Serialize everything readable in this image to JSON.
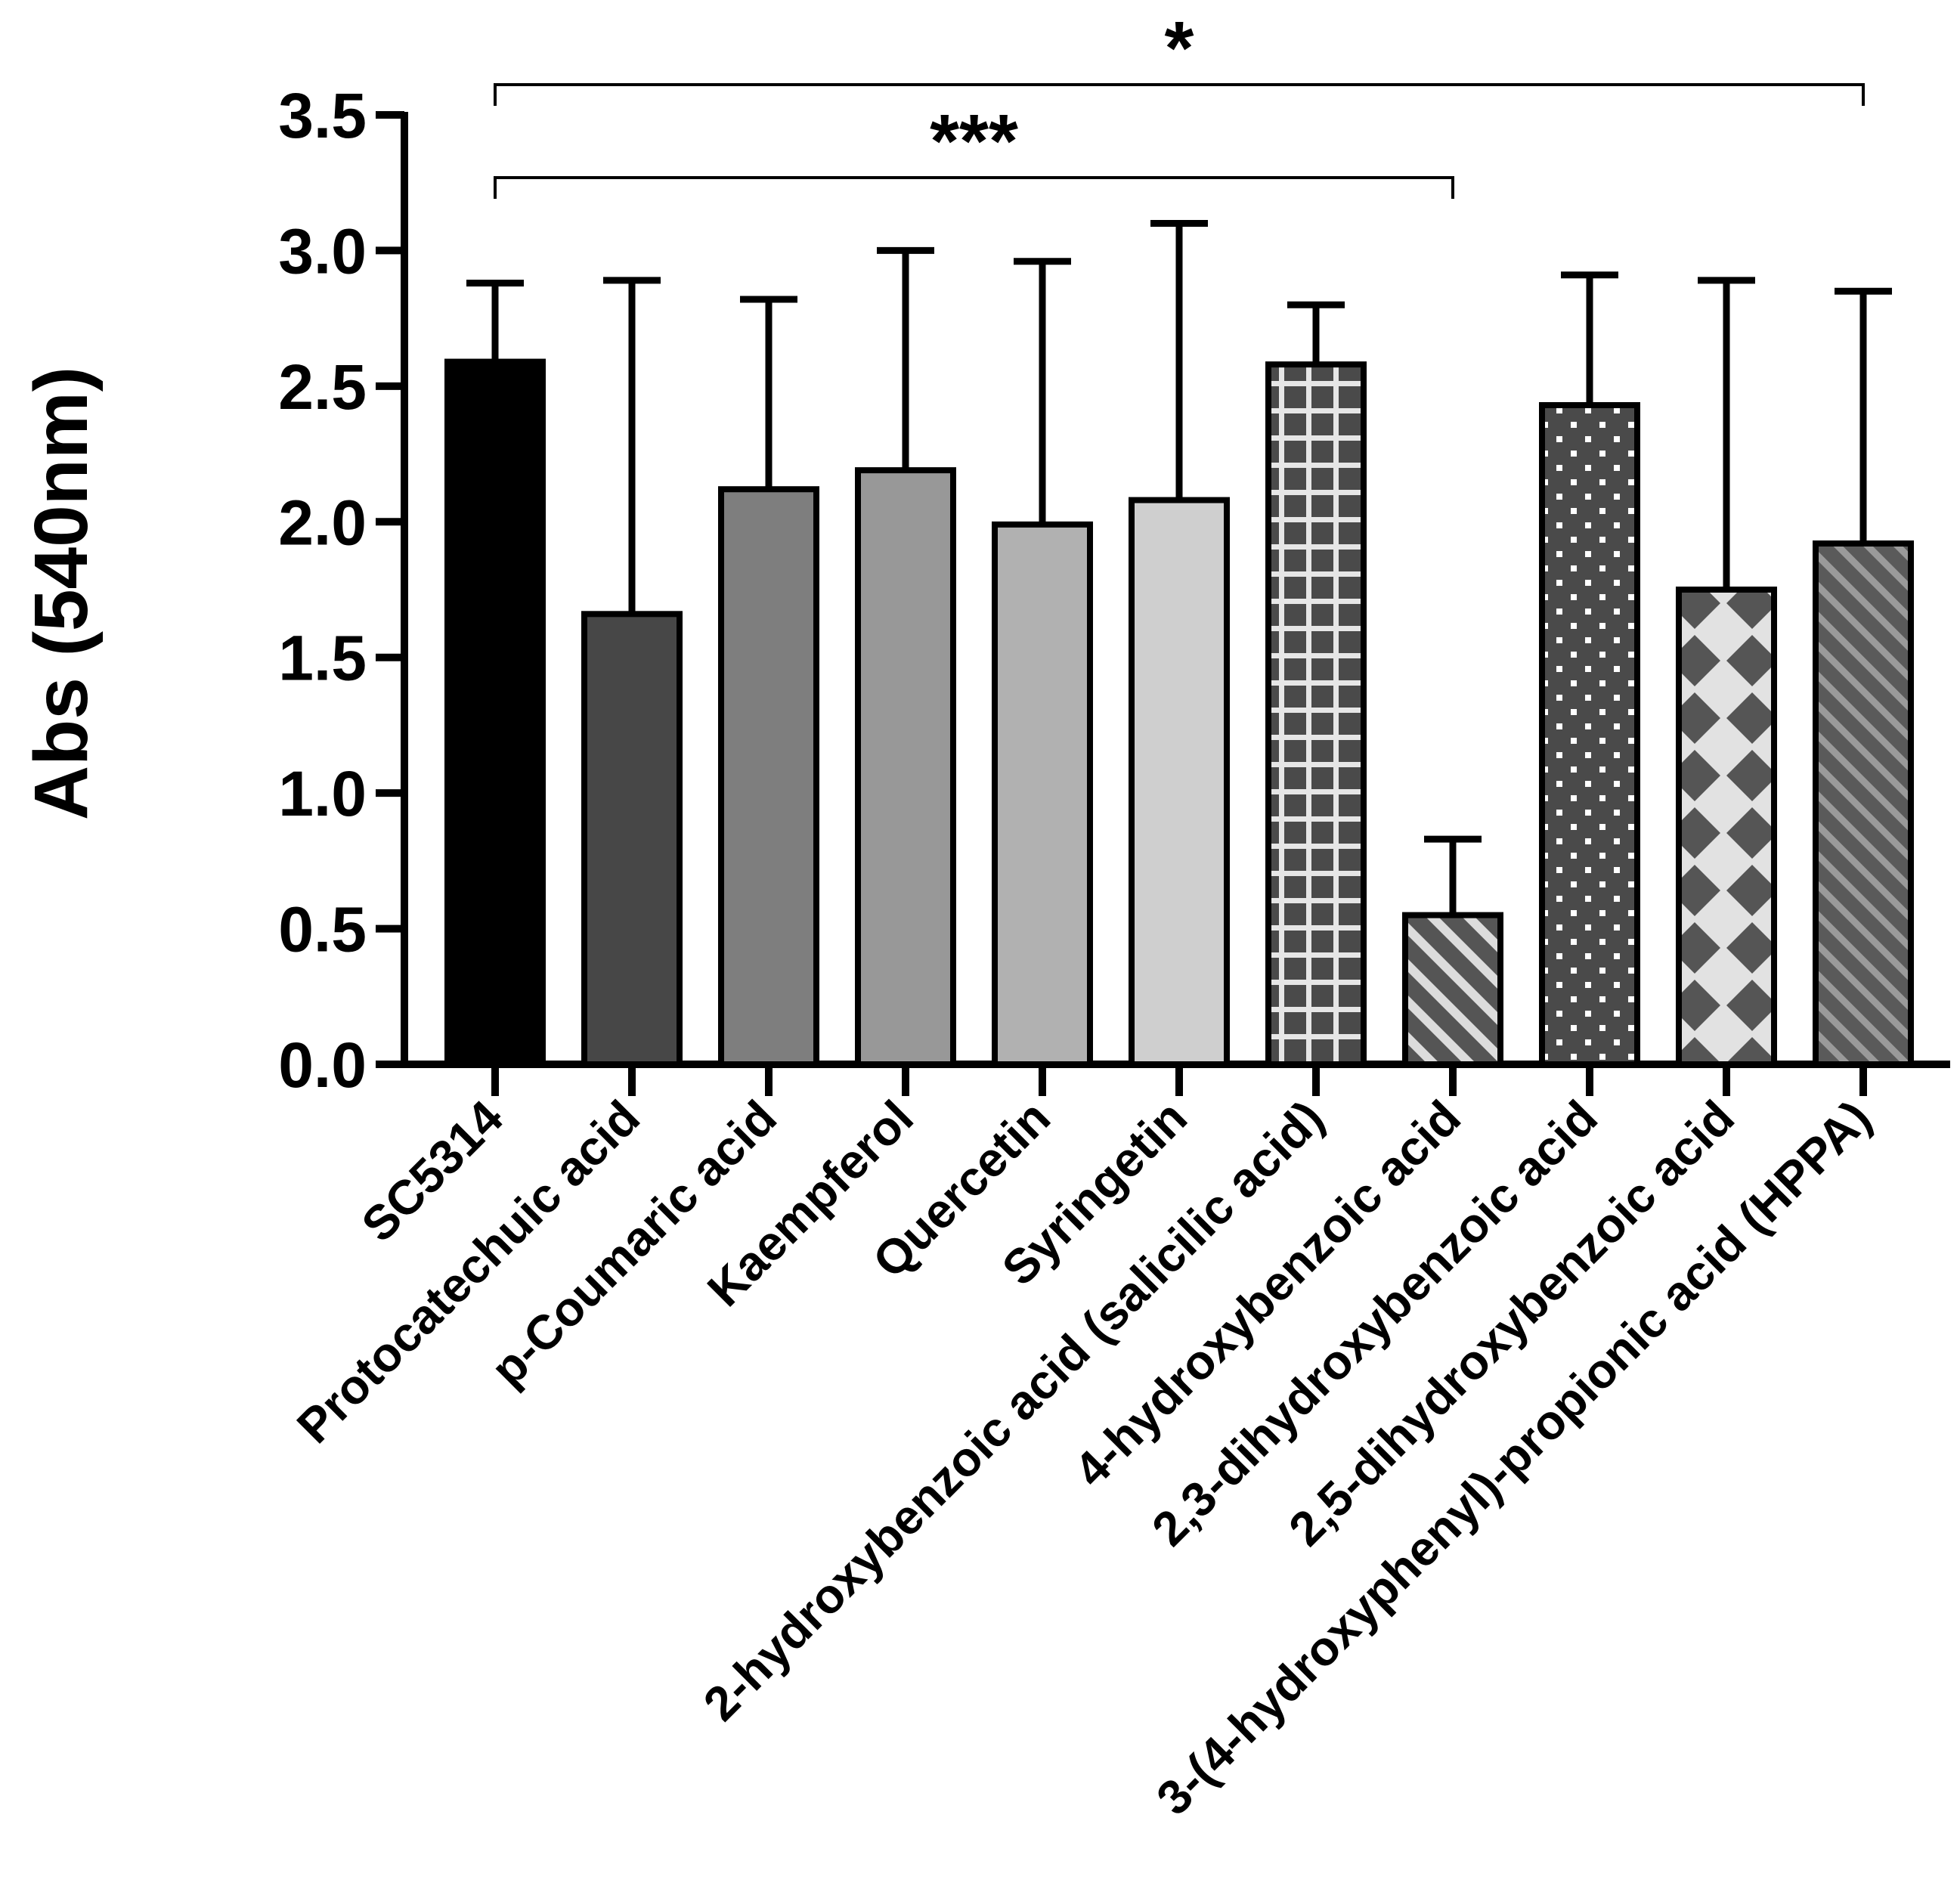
{
  "chart_data": {
    "type": "bar",
    "title": "",
    "xlabel": "",
    "ylabel": "Abs (540nm)",
    "ylim": [
      0,
      3.5
    ],
    "yticks": [
      "0.0",
      "0.5",
      "1.0",
      "1.5",
      "2.0",
      "2.5",
      "3.0",
      "3.5"
    ],
    "grid": false,
    "legend": "none",
    "categories": [
      "SC5314",
      "Protocatechuic acid",
      "p-Coumaric acid",
      "Kaempferol",
      "Quercetin",
      "Syringetin",
      "2-hydroxybenzoic acid (salicilic acid)",
      "4-hydroxybenzoic acid",
      "2,3-dihydroxybenzoic acid",
      "2,5-dihydroxybenzoic acid",
      "3-(4-hydroxyphenyl)-propionic acid (HPPA)"
    ],
    "values": [
      2.59,
      1.66,
      2.12,
      2.19,
      1.99,
      2.08,
      2.58,
      0.55,
      2.43,
      1.75,
      1.92
    ],
    "error_upper": [
      2.88,
      2.89,
      2.82,
      3.0,
      2.96,
      3.1,
      2.8,
      0.83,
      2.91,
      2.89,
      2.85
    ],
    "bar_fills": [
      {
        "pattern": "solid",
        "color": "#000000"
      },
      {
        "pattern": "solid",
        "color": "#474747"
      },
      {
        "pattern": "solid",
        "color": "#7e7e7e"
      },
      {
        "pattern": "solid",
        "color": "#989898"
      },
      {
        "pattern": "solid",
        "color": "#b1b1b1"
      },
      {
        "pattern": "solid",
        "color": "#cfcfcf"
      },
      {
        "pattern": "grid",
        "color": "#4a4a4a",
        "accent": "#e6e6e6"
      },
      {
        "pattern": "diagonal",
        "color": "#555555",
        "accent": "#dcdcdc"
      },
      {
        "pattern": "dots",
        "color": "#4a4a4a",
        "accent": "#ffffff"
      },
      {
        "pattern": "diamonds",
        "color": "#e2e2e2",
        "accent": "#555555"
      },
      {
        "pattern": "diagonal-thin",
        "color": "#5a5a5a",
        "accent": "#9a9a9a"
      }
    ],
    "significance": [
      {
        "from": 0,
        "to": 10,
        "label": "*"
      },
      {
        "from": 0,
        "to": 7,
        "label": "***"
      }
    ]
  }
}
